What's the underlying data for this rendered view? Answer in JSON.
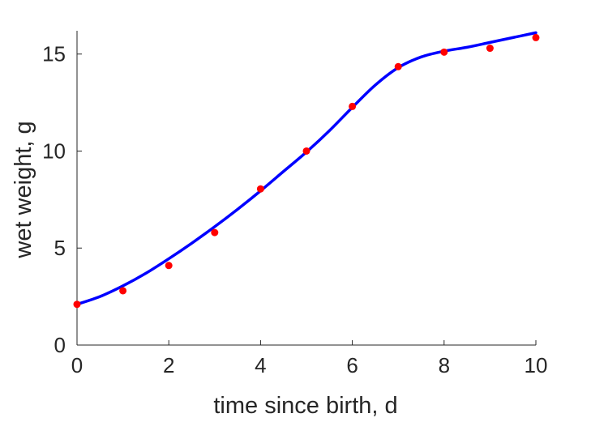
{
  "chart_data": {
    "type": "scatter",
    "xlabel": "time since birth, d",
    "ylabel": "wet weight, g",
    "xlim": [
      0,
      10
    ],
    "ylim": [
      0,
      16.2
    ],
    "xticks": [
      "0",
      "2",
      "4",
      "6",
      "8",
      "10"
    ],
    "yticks": [
      "0",
      "5",
      "10",
      "15"
    ],
    "grid": false,
    "box": false,
    "series": [
      {
        "kind": "points",
        "color": "#ff0000",
        "x": [
          0,
          1,
          2,
          3,
          4,
          5,
          6,
          7,
          8,
          9,
          10
        ],
        "y": [
          2.1,
          2.8,
          4.1,
          5.8,
          8.05,
          10.0,
          12.3,
          14.35,
          15.1,
          15.3,
          15.85
        ]
      },
      {
        "kind": "fit-line",
        "color": "#0000ff",
        "x": [
          0,
          0.5,
          1,
          1.5,
          2,
          2.5,
          3,
          3.5,
          4,
          4.5,
          5,
          5.5,
          6,
          6.5,
          7,
          7.5,
          8,
          8.5,
          9,
          9.5,
          10
        ],
        "y": [
          2.1,
          2.5,
          3.05,
          3.7,
          4.45,
          5.25,
          6.1,
          7.0,
          7.95,
          8.95,
          9.95,
          11.05,
          12.25,
          13.4,
          14.3,
          14.85,
          15.15,
          15.35,
          15.6,
          15.85,
          16.1
        ]
      }
    ]
  }
}
